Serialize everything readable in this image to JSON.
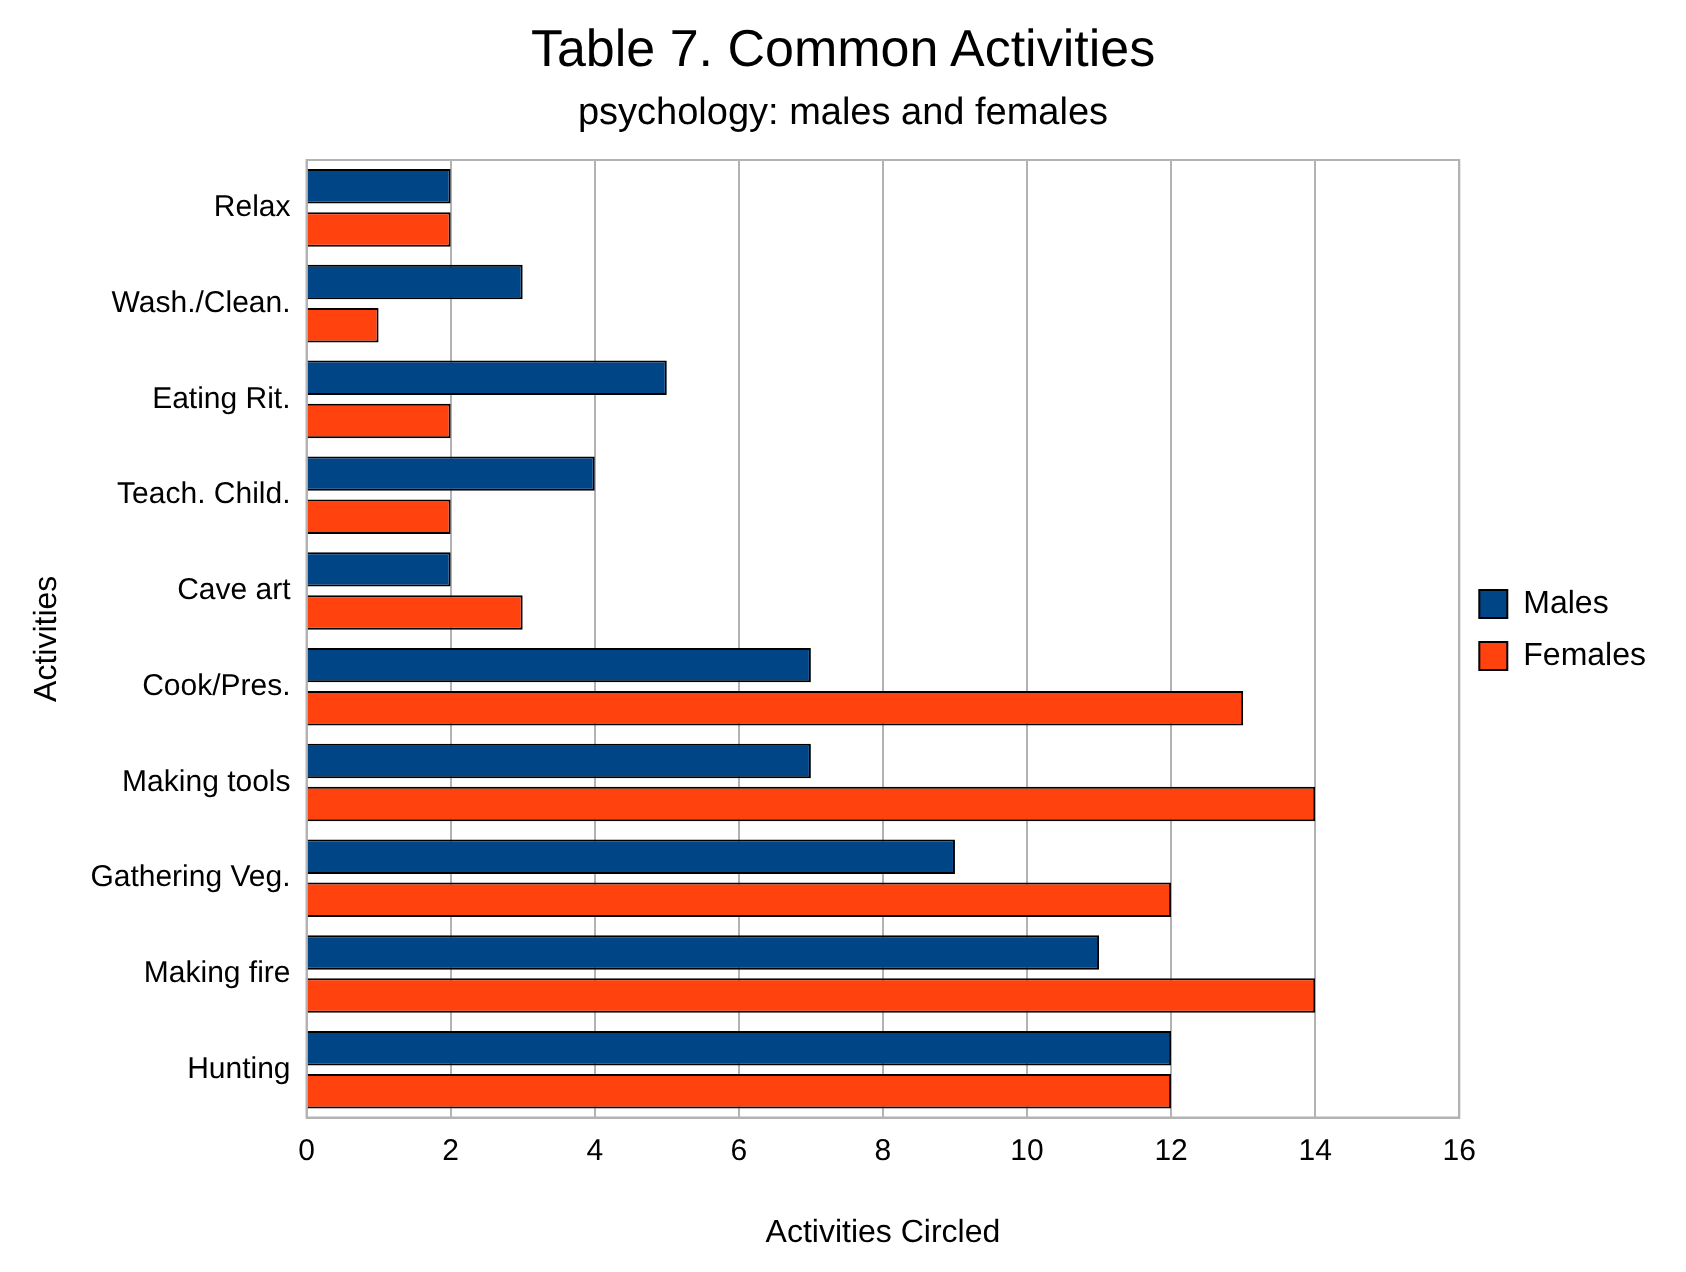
{
  "chart_data": {
    "type": "bar",
    "orientation": "horizontal",
    "title": "Table 7. Common Activities",
    "subtitle": "psychology: males and females",
    "xlabel": "Activities Circled",
    "ylabel": "Activities",
    "categories": [
      "Relax",
      "Wash./Clean.",
      "Eating Rit.",
      "Teach. Child.",
      "Cave art",
      "Cook/Pres.",
      "Making tools",
      "Gathering Veg.",
      "Making fire",
      "Hunting"
    ],
    "series": [
      {
        "name": "Males",
        "color": "#004586",
        "values": [
          2,
          3,
          5,
          4,
          2,
          7,
          7,
          9,
          11,
          12
        ]
      },
      {
        "name": "Females",
        "color": "#ff420e",
        "values": [
          2,
          1,
          2,
          2,
          3,
          13,
          14,
          12,
          14,
          12
        ]
      }
    ],
    "xlim": [
      0,
      16
    ],
    "xticks": [
      0,
      2,
      4,
      6,
      8,
      10,
      12,
      14,
      16
    ],
    "grid": "x",
    "legend": "right"
  }
}
